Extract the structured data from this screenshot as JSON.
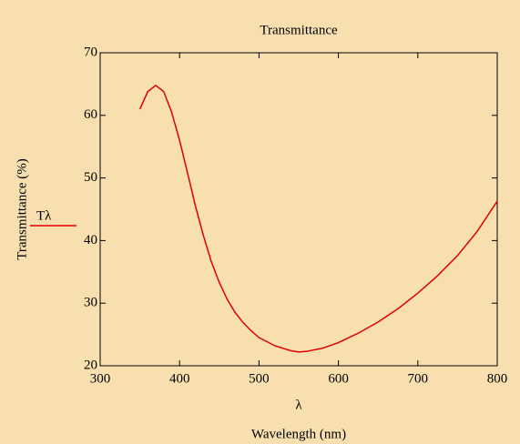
{
  "chart_data": {
    "type": "line",
    "title": "Transmittance",
    "y_label": "Transmittance (%)",
    "x_label": "Wavelength (nm)",
    "x_variable": "λ",
    "x": [
      350,
      360,
      370,
      380,
      390,
      400,
      410,
      420,
      430,
      440,
      450,
      460,
      470,
      480,
      490,
      500,
      520,
      540,
      550,
      560,
      580,
      600,
      625,
      650,
      675,
      700,
      725,
      750,
      775,
      800
    ],
    "series": [
      {
        "name": "Tλ",
        "color": "#e00000",
        "values": [
          61,
          63.8,
          64.8,
          63.8,
          60.5,
          56,
          50.8,
          45.5,
          40.8,
          36.6,
          33.3,
          30.6,
          28.5,
          26.9,
          25.6,
          24.5,
          23.2,
          22.4,
          22.2,
          22.3,
          22.8,
          23.7,
          25.2,
          27.0,
          29.1,
          31.6,
          34.4,
          37.6,
          41.5,
          46.3
        ]
      }
    ],
    "xlim": [
      300,
      800
    ],
    "xticks": [
      300,
      400,
      500,
      600,
      700,
      800
    ],
    "ylim": [
      20,
      70
    ],
    "yticks": [
      20,
      30,
      40,
      50,
      60,
      70
    ],
    "legend": "left"
  }
}
